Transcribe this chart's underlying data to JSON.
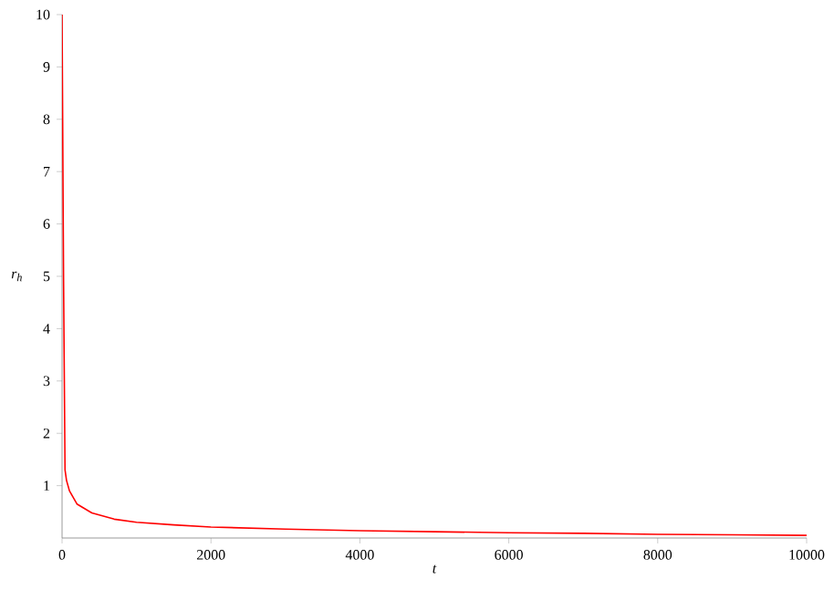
{
  "chart_data": {
    "type": "line",
    "xlabel": "t",
    "ylabel": "r$_{h}$",
    "xlim": [
      0,
      10000
    ],
    "ylim": [
      0,
      10
    ],
    "xticks": [
      0,
      2000,
      4000,
      6000,
      8000,
      10000
    ],
    "yticks": [
      1,
      2,
      3,
      4,
      5,
      6,
      7,
      8,
      9,
      10
    ],
    "grid": false,
    "series": [
      {
        "color": "#ff0000",
        "x": [
          0,
          20,
          40,
          60,
          100,
          200,
          400,
          700,
          1000,
          1500,
          2000,
          3000,
          4000,
          5000,
          6000,
          7000,
          8000,
          9000,
          10000
        ],
        "values": [
          10,
          5,
          1.3,
          1.1,
          0.9,
          0.65,
          0.48,
          0.36,
          0.3,
          0.25,
          0.21,
          0.17,
          0.14,
          0.12,
          0.1,
          0.09,
          0.07,
          0.06,
          0.05
        ]
      }
    ]
  }
}
